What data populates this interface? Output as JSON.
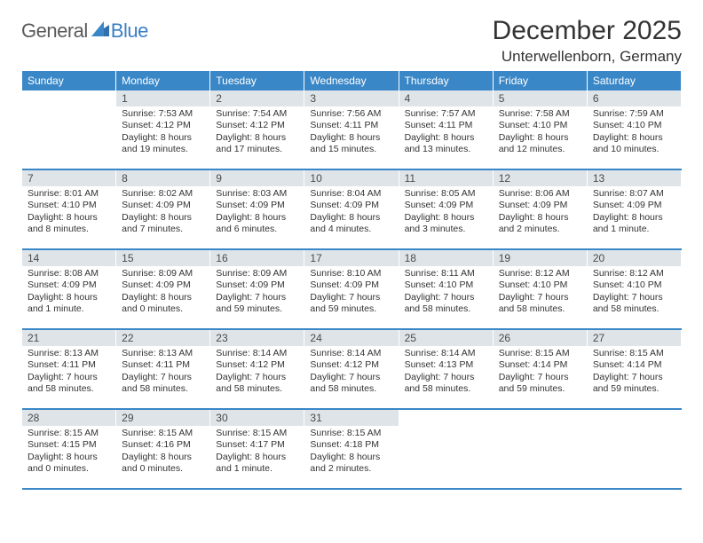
{
  "brand": {
    "general": "General",
    "blue": "Blue"
  },
  "title": "December 2025",
  "location": "Unterwellenborn, Germany",
  "colors": {
    "header_bar": "#3a87c7",
    "daynum_bg": "#dfe4e8",
    "rule": "#3a87c7",
    "text": "#333333",
    "brand_blue": "#3a7fc4",
    "brand_gray": "#5a5a5a"
  },
  "weekdays": [
    "Sunday",
    "Monday",
    "Tuesday",
    "Wednesday",
    "Thursday",
    "Friday",
    "Saturday"
  ],
  "weeks": [
    [
      null,
      {
        "n": "1",
        "sr": "Sunrise: 7:53 AM",
        "ss": "Sunset: 4:12 PM",
        "dl": "Daylight: 8 hours and 19 minutes."
      },
      {
        "n": "2",
        "sr": "Sunrise: 7:54 AM",
        "ss": "Sunset: 4:12 PM",
        "dl": "Daylight: 8 hours and 17 minutes."
      },
      {
        "n": "3",
        "sr": "Sunrise: 7:56 AM",
        "ss": "Sunset: 4:11 PM",
        "dl": "Daylight: 8 hours and 15 minutes."
      },
      {
        "n": "4",
        "sr": "Sunrise: 7:57 AM",
        "ss": "Sunset: 4:11 PM",
        "dl": "Daylight: 8 hours and 13 minutes."
      },
      {
        "n": "5",
        "sr": "Sunrise: 7:58 AM",
        "ss": "Sunset: 4:10 PM",
        "dl": "Daylight: 8 hours and 12 minutes."
      },
      {
        "n": "6",
        "sr": "Sunrise: 7:59 AM",
        "ss": "Sunset: 4:10 PM",
        "dl": "Daylight: 8 hours and 10 minutes."
      }
    ],
    [
      {
        "n": "7",
        "sr": "Sunrise: 8:01 AM",
        "ss": "Sunset: 4:10 PM",
        "dl": "Daylight: 8 hours and 8 minutes."
      },
      {
        "n": "8",
        "sr": "Sunrise: 8:02 AM",
        "ss": "Sunset: 4:09 PM",
        "dl": "Daylight: 8 hours and 7 minutes."
      },
      {
        "n": "9",
        "sr": "Sunrise: 8:03 AM",
        "ss": "Sunset: 4:09 PM",
        "dl": "Daylight: 8 hours and 6 minutes."
      },
      {
        "n": "10",
        "sr": "Sunrise: 8:04 AM",
        "ss": "Sunset: 4:09 PM",
        "dl": "Daylight: 8 hours and 4 minutes."
      },
      {
        "n": "11",
        "sr": "Sunrise: 8:05 AM",
        "ss": "Sunset: 4:09 PM",
        "dl": "Daylight: 8 hours and 3 minutes."
      },
      {
        "n": "12",
        "sr": "Sunrise: 8:06 AM",
        "ss": "Sunset: 4:09 PM",
        "dl": "Daylight: 8 hours and 2 minutes."
      },
      {
        "n": "13",
        "sr": "Sunrise: 8:07 AM",
        "ss": "Sunset: 4:09 PM",
        "dl": "Daylight: 8 hours and 1 minute."
      }
    ],
    [
      {
        "n": "14",
        "sr": "Sunrise: 8:08 AM",
        "ss": "Sunset: 4:09 PM",
        "dl": "Daylight: 8 hours and 1 minute."
      },
      {
        "n": "15",
        "sr": "Sunrise: 8:09 AM",
        "ss": "Sunset: 4:09 PM",
        "dl": "Daylight: 8 hours and 0 minutes."
      },
      {
        "n": "16",
        "sr": "Sunrise: 8:09 AM",
        "ss": "Sunset: 4:09 PM",
        "dl": "Daylight: 7 hours and 59 minutes."
      },
      {
        "n": "17",
        "sr": "Sunrise: 8:10 AM",
        "ss": "Sunset: 4:09 PM",
        "dl": "Daylight: 7 hours and 59 minutes."
      },
      {
        "n": "18",
        "sr": "Sunrise: 8:11 AM",
        "ss": "Sunset: 4:10 PM",
        "dl": "Daylight: 7 hours and 58 minutes."
      },
      {
        "n": "19",
        "sr": "Sunrise: 8:12 AM",
        "ss": "Sunset: 4:10 PM",
        "dl": "Daylight: 7 hours and 58 minutes."
      },
      {
        "n": "20",
        "sr": "Sunrise: 8:12 AM",
        "ss": "Sunset: 4:10 PM",
        "dl": "Daylight: 7 hours and 58 minutes."
      }
    ],
    [
      {
        "n": "21",
        "sr": "Sunrise: 8:13 AM",
        "ss": "Sunset: 4:11 PM",
        "dl": "Daylight: 7 hours and 58 minutes."
      },
      {
        "n": "22",
        "sr": "Sunrise: 8:13 AM",
        "ss": "Sunset: 4:11 PM",
        "dl": "Daylight: 7 hours and 58 minutes."
      },
      {
        "n": "23",
        "sr": "Sunrise: 8:14 AM",
        "ss": "Sunset: 4:12 PM",
        "dl": "Daylight: 7 hours and 58 minutes."
      },
      {
        "n": "24",
        "sr": "Sunrise: 8:14 AM",
        "ss": "Sunset: 4:12 PM",
        "dl": "Daylight: 7 hours and 58 minutes."
      },
      {
        "n": "25",
        "sr": "Sunrise: 8:14 AM",
        "ss": "Sunset: 4:13 PM",
        "dl": "Daylight: 7 hours and 58 minutes."
      },
      {
        "n": "26",
        "sr": "Sunrise: 8:15 AM",
        "ss": "Sunset: 4:14 PM",
        "dl": "Daylight: 7 hours and 59 minutes."
      },
      {
        "n": "27",
        "sr": "Sunrise: 8:15 AM",
        "ss": "Sunset: 4:14 PM",
        "dl": "Daylight: 7 hours and 59 minutes."
      }
    ],
    [
      {
        "n": "28",
        "sr": "Sunrise: 8:15 AM",
        "ss": "Sunset: 4:15 PM",
        "dl": "Daylight: 8 hours and 0 minutes."
      },
      {
        "n": "29",
        "sr": "Sunrise: 8:15 AM",
        "ss": "Sunset: 4:16 PM",
        "dl": "Daylight: 8 hours and 0 minutes."
      },
      {
        "n": "30",
        "sr": "Sunrise: 8:15 AM",
        "ss": "Sunset: 4:17 PM",
        "dl": "Daylight: 8 hours and 1 minute."
      },
      {
        "n": "31",
        "sr": "Sunrise: 8:15 AM",
        "ss": "Sunset: 4:18 PM",
        "dl": "Daylight: 8 hours and 2 minutes."
      },
      null,
      null,
      null
    ]
  ]
}
